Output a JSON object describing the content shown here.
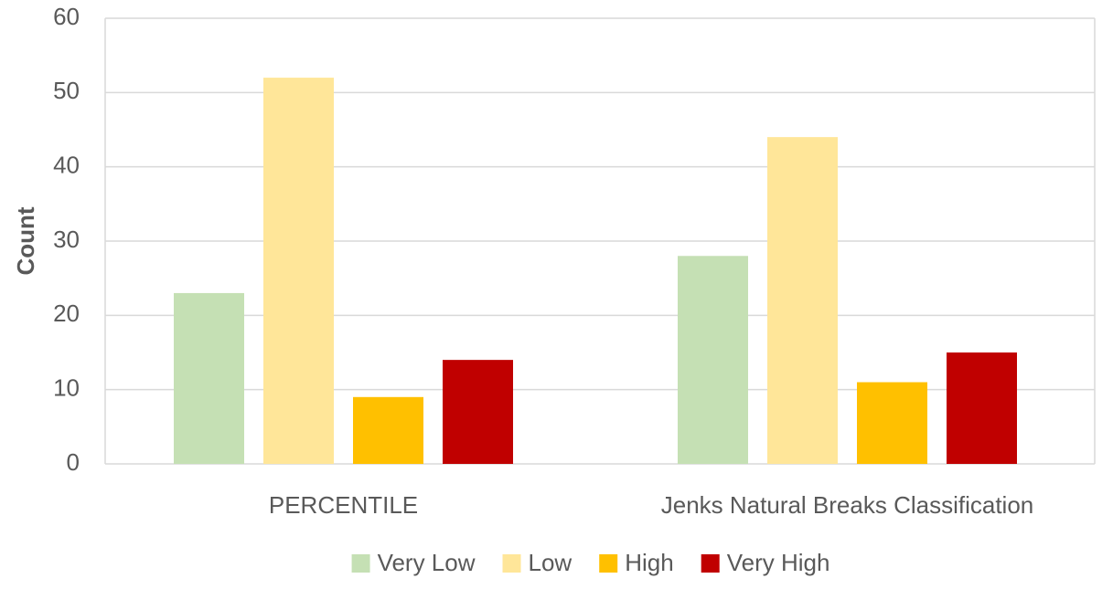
{
  "chart_data": {
    "type": "bar",
    "y_label": "Count",
    "categories": [
      "PERCENTILE",
      "Jenks Natural Breaks Classification"
    ],
    "series": [
      {
        "name": "Very Low",
        "color": "#c5e0b4",
        "values": [
          23,
          28
        ]
      },
      {
        "name": "Low",
        "color": "#ffe699",
        "values": [
          52,
          44
        ]
      },
      {
        "name": "High",
        "color": "#ffc000",
        "values": [
          9,
          11
        ]
      },
      {
        "name": "Very High",
        "color": "#c00000",
        "values": [
          14,
          15
        ]
      }
    ],
    "ylim": [
      0,
      60
    ],
    "yticks": [
      0,
      10,
      20,
      30,
      40,
      50,
      60
    ],
    "grid": true,
    "legend": "bottom"
  }
}
